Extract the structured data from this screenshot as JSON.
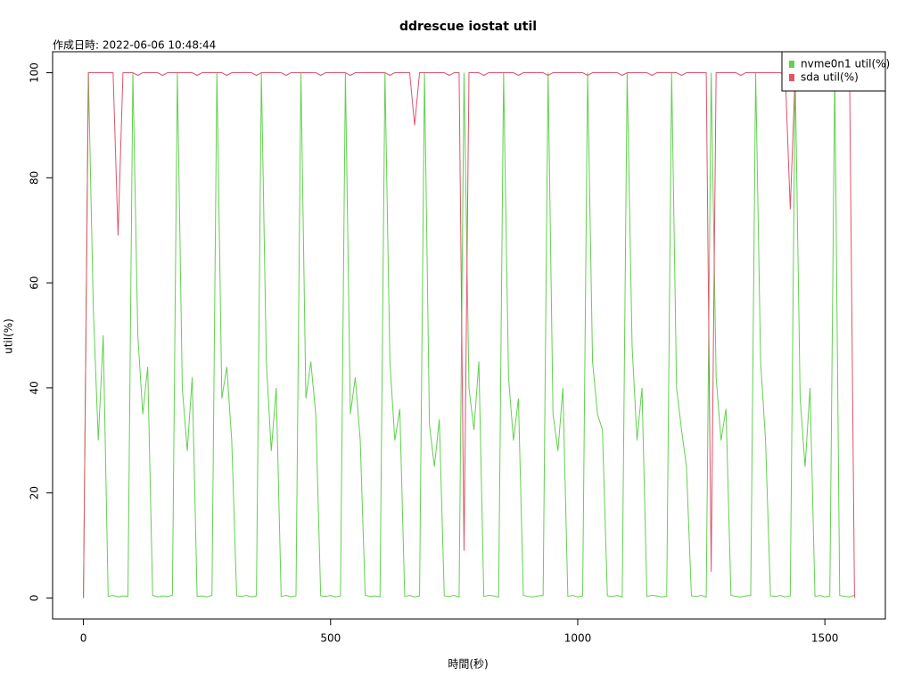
{
  "chart_data": {
    "type": "line",
    "title": "ddrescue iostat util",
    "subtitle": "作成日時: 2022-06-06 10:48:44",
    "x_label": "時間(秒)",
    "y_label": "util(%)",
    "x": [
      0,
      10,
      20,
      30,
      40,
      50,
      60,
      70,
      80,
      90,
      100,
      110,
      120,
      130,
      140,
      150,
      160,
      170,
      180,
      190,
      200,
      210,
      220,
      230,
      240,
      250,
      260,
      270,
      280,
      290,
      300,
      310,
      320,
      330,
      340,
      350,
      360,
      370,
      380,
      390,
      400,
      410,
      420,
      430,
      440,
      450,
      460,
      470,
      480,
      490,
      500,
      510,
      520,
      530,
      540,
      550,
      560,
      570,
      580,
      590,
      600,
      610,
      620,
      630,
      640,
      650,
      660,
      670,
      680,
      690,
      700,
      710,
      720,
      730,
      740,
      750,
      760,
      770,
      780,
      790,
      800,
      810,
      820,
      830,
      840,
      850,
      860,
      870,
      880,
      890,
      900,
      910,
      920,
      930,
      940,
      950,
      960,
      970,
      980,
      990,
      1000,
      1010,
      1020,
      1030,
      1040,
      1050,
      1060,
      1070,
      1080,
      1090,
      1100,
      1110,
      1120,
      1130,
      1140,
      1150,
      1160,
      1170,
      1180,
      1190,
      1200,
      1210,
      1220,
      1230,
      1240,
      1250,
      1260,
      1270,
      1280,
      1290,
      1300,
      1310,
      1320,
      1330,
      1340,
      1350,
      1360,
      1370,
      1380,
      1390,
      1400,
      1410,
      1420,
      1430,
      1440,
      1450,
      1460,
      1470,
      1480,
      1490,
      1500,
      1510,
      1520,
      1530,
      1540,
      1550,
      1560
    ],
    "series": [
      {
        "name": "nvme0n1 util(%)",
        "color": "#61D04F",
        "values": [
          0,
          100,
          55,
          30,
          50,
          0.3,
          0.5,
          0.2,
          0.4,
          0.3,
          100,
          50,
          35,
          44,
          0.5,
          0.2,
          0.4,
          0.3,
          0.5,
          100,
          40,
          28,
          42,
          0.3,
          0.4,
          0.2,
          0.5,
          100,
          38,
          44,
          30,
          0.4,
          0.3,
          0.5,
          0.2,
          0.4,
          100,
          45,
          28,
          40,
          0.3,
          0.5,
          0.2,
          0.4,
          100,
          38,
          45,
          35,
          0.4,
          0.3,
          0.5,
          0.2,
          0.4,
          100,
          35,
          42,
          30,
          0.5,
          0.3,
          0.4,
          0.2,
          100,
          45,
          30,
          36,
          0.3,
          0.5,
          0.2,
          0.4,
          100,
          33,
          25,
          34,
          0.4,
          0.3,
          0.5,
          0.2,
          100,
          40,
          32,
          45,
          0.3,
          0.5,
          0.4,
          0.2,
          100,
          42,
          30,
          38,
          0.5,
          0.3,
          0.2,
          0.4,
          0.5,
          100,
          35,
          28,
          40,
          0.3,
          0.5,
          0.2,
          0.4,
          100,
          45,
          35,
          32,
          0.4,
          0.3,
          0.5,
          0.2,
          100,
          48,
          30,
          40,
          0.3,
          0.5,
          0.4,
          0.2,
          0.3,
          100,
          40,
          32,
          25,
          0.4,
          0.3,
          0.5,
          0.2,
          100,
          42,
          30,
          36,
          0.5,
          0.3,
          0.2,
          0.4,
          0.5,
          100,
          45,
          30,
          0.4,
          0.3,
          0.5,
          0.2,
          0.4,
          100,
          38,
          25,
          40,
          0.3,
          0.5,
          0.2,
          0.4,
          100,
          0.5,
          0.3,
          0.2,
          0.5
        ]
      },
      {
        "name": "sda util(%)",
        "color": "#DF536B",
        "values": [
          0,
          100,
          100,
          100,
          100,
          100,
          100,
          69,
          100,
          100,
          100,
          99.5,
          100,
          100,
          100,
          100,
          99.5,
          100,
          100,
          100,
          100,
          100,
          100,
          99.5,
          100,
          100,
          100,
          100,
          100,
          99.5,
          100,
          100,
          100,
          100,
          100,
          99.5,
          100,
          100,
          100,
          100,
          100,
          99.5,
          100,
          100,
          100,
          100,
          100,
          100,
          99.5,
          100,
          100,
          100,
          100,
          100,
          99.5,
          100,
          100,
          100,
          100,
          100,
          100,
          100,
          99.5,
          100,
          100,
          100,
          100,
          90,
          100,
          100,
          100,
          100,
          100,
          100,
          99.5,
          100,
          100,
          9,
          100,
          100,
          100,
          99.5,
          100,
          100,
          100,
          100,
          100,
          100,
          99.5,
          100,
          100,
          100,
          100,
          100,
          99.5,
          100,
          100,
          100,
          100,
          100,
          100,
          100,
          99.5,
          100,
          100,
          100,
          100,
          100,
          100,
          99.5,
          100,
          100,
          100,
          100,
          100,
          99.5,
          100,
          100,
          100,
          100,
          100,
          99.5,
          100,
          100,
          100,
          100,
          100,
          5,
          100,
          100,
          100,
          100,
          100,
          99.5,
          100,
          100,
          100,
          100,
          100,
          100,
          100,
          100,
          99.5,
          74,
          100,
          100,
          100,
          100,
          99.5,
          100,
          100,
          100,
          100,
          100,
          100,
          100,
          0
        ]
      }
    ],
    "xlim": [
      -62.4,
      1622.4
    ],
    "ylim": [
      -4,
      104
    ],
    "xticks": [
      0,
      500,
      1000,
      1500
    ],
    "yticks": [
      0,
      20,
      40,
      60,
      80,
      100
    ],
    "grid": false,
    "legend_position": "topright"
  }
}
